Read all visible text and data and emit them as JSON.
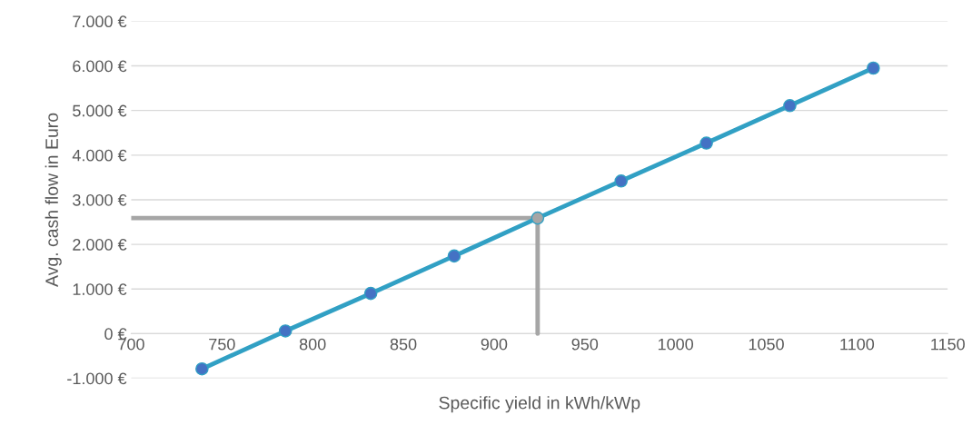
{
  "chart_data": {
    "type": "line",
    "xlabel": "Specific yield in kWh/kWp",
    "ylabel": "Avg. cash flow in Euro",
    "xlim": [
      700,
      1150
    ],
    "xticks": [
      700,
      750,
      800,
      850,
      900,
      950,
      1000,
      1050,
      1100,
      1150
    ],
    "ylim": [
      -1000,
      7000
    ],
    "yticks": [
      {
        "value": -1000,
        "label": "-1.000 €"
      },
      {
        "value": 0,
        "label": "0 €"
      },
      {
        "value": 1000,
        "label": "1.000 €"
      },
      {
        "value": 2000,
        "label": "2.000 €"
      },
      {
        "value": 3000,
        "label": "3.000 €"
      },
      {
        "value": 4000,
        "label": "4.000 €"
      },
      {
        "value": 5000,
        "label": "5.000 €"
      },
      {
        "value": 6000,
        "label": "6.000 €"
      },
      {
        "value": 7000,
        "label": "7.000 €"
      }
    ],
    "grid": "y",
    "line_style": "solid",
    "series": [
      {
        "color": "#a6a6a6",
        "x": [
          700,
          924
        ],
        "values": [
          2590,
          2590
        ]
      },
      {
        "color": "#a6a6a6",
        "x": [
          924,
          924
        ],
        "values": [
          0,
          2590
        ]
      },
      {
        "color": "#31a0c4",
        "marker": "circle",
        "x": [
          739,
          785,
          832,
          878,
          924,
          970,
          1017,
          1063,
          1109
        ],
        "values": [
          -790,
          60,
          900,
          1740,
          2590,
          3420,
          4270,
          5110,
          5950
        ],
        "colors": [
          "#4472c4",
          "#4472c4",
          "#4472c4",
          "#4472c4",
          "#a6a6a6",
          "#4472c4",
          "#4472c4",
          "#4472c4",
          "#4472c4"
        ]
      }
    ]
  }
}
